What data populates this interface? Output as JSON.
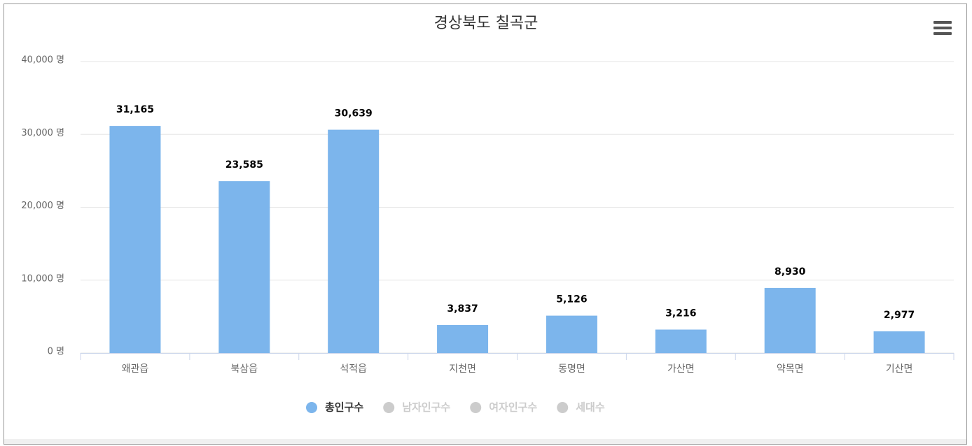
{
  "chart_data": {
    "type": "bar",
    "title": "경상북도 칠곡군",
    "categories": [
      "왜관읍",
      "북삼읍",
      "석적읍",
      "지천면",
      "동명면",
      "가산면",
      "약목면",
      "기산면"
    ],
    "series": [
      {
        "name": "총인구수",
        "color": "#7cb5ec",
        "values": [
          31165,
          23585,
          30639,
          3837,
          5126,
          3216,
          8930,
          2977
        ],
        "value_labels": [
          "31,165",
          "23,585",
          "30,639",
          "3,837",
          "5,126",
          "3,216",
          "8,930",
          "2,977"
        ]
      }
    ],
    "hidden_series": [
      {
        "name": "남자인구수"
      },
      {
        "name": "여자인구수"
      },
      {
        "name": "세대수"
      }
    ],
    "hidden_color": "#cccccc",
    "ylim": [
      0,
      40000
    ],
    "yticks": [
      {
        "value": 0,
        "label": "0 명"
      },
      {
        "value": 10000,
        "label": "10,000 명"
      },
      {
        "value": 20000,
        "label": "20,000 명"
      },
      {
        "value": 30000,
        "label": "30,000 명"
      },
      {
        "value": 40000,
        "label": "40,000 명"
      }
    ],
    "grid": true,
    "legend": "bottom"
  }
}
